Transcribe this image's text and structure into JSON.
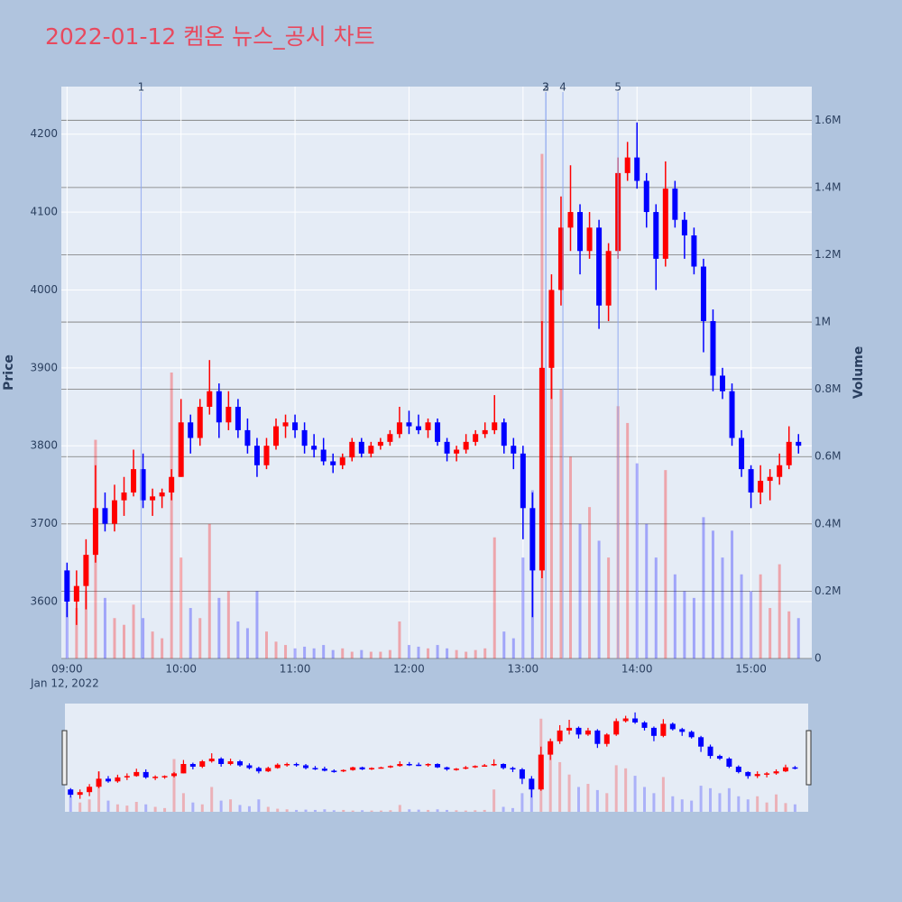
{
  "chart_data": {
    "type": "candlestick",
    "title": "2022-01-12 켐온 뉴스_공시 차트",
    "y_label": "Price",
    "y2_label": "Volume",
    "x_date_label": "Jan 12, 2022",
    "increasing_color": "#ff0000",
    "decreasing_color": "#0000ff",
    "x": [
      "09:00",
      "09:05",
      "09:10",
      "09:15",
      "09:20",
      "09:25",
      "09:30",
      "09:35",
      "09:40",
      "09:45",
      "09:50",
      "09:55",
      "10:00",
      "10:05",
      "10:10",
      "10:15",
      "10:20",
      "10:25",
      "10:30",
      "10:35",
      "10:40",
      "10:45",
      "10:50",
      "10:55",
      "11:00",
      "11:05",
      "11:10",
      "11:15",
      "11:20",
      "11:25",
      "11:30",
      "11:35",
      "11:40",
      "11:45",
      "11:50",
      "11:55",
      "12:00",
      "12:05",
      "12:10",
      "12:15",
      "12:20",
      "12:25",
      "12:30",
      "12:35",
      "12:40",
      "12:45",
      "12:50",
      "12:55",
      "13:00",
      "13:05",
      "13:10",
      "13:15",
      "13:20",
      "13:25",
      "13:30",
      "13:35",
      "13:40",
      "13:45",
      "13:50",
      "13:55",
      "14:00",
      "14:05",
      "14:10",
      "14:15",
      "14:20",
      "14:25",
      "14:30",
      "14:35",
      "14:40",
      "14:45",
      "14:50",
      "14:55",
      "15:00",
      "15:05",
      "15:10",
      "15:15",
      "15:20",
      "15:25"
    ],
    "open": [
      3640,
      3600,
      3620,
      3660,
      3720,
      3700,
      3730,
      3740,
      3770,
      3730,
      3735,
      3740,
      3760,
      3830,
      3810,
      3850,
      3870,
      3830,
      3850,
      3820,
      3800,
      3775,
      3800,
      3825,
      3830,
      3820,
      3800,
      3795,
      3780,
      3775,
      3785,
      3805,
      3790,
      3800,
      3805,
      3815,
      3830,
      3825,
      3820,
      3830,
      3805,
      3790,
      3795,
      3805,
      3815,
      3820,
      3830,
      3800,
      3790,
      3720,
      3640,
      3900,
      4000,
      4080,
      4100,
      4050,
      4080,
      3980,
      4050,
      4150,
      4170,
      4140,
      4100,
      4040,
      4130,
      4090,
      4070,
      4030,
      3960,
      3890,
      3870,
      3810,
      3770,
      3740,
      3755,
      3760,
      3775,
      3805
    ],
    "high": [
      3650,
      3640,
      3680,
      3775,
      3740,
      3750,
      3760,
      3795,
      3790,
      3745,
      3745,
      3770,
      3860,
      3840,
      3860,
      3910,
      3880,
      3870,
      3860,
      3835,
      3810,
      3810,
      3835,
      3840,
      3840,
      3830,
      3815,
      3810,
      3790,
      3790,
      3810,
      3810,
      3805,
      3810,
      3820,
      3850,
      3845,
      3840,
      3835,
      3835,
      3810,
      3800,
      3815,
      3820,
      3830,
      3865,
      3835,
      3810,
      3800,
      3740,
      3960,
      4020,
      4120,
      4160,
      4110,
      4100,
      4090,
      4060,
      4170,
      4190,
      4215,
      4150,
      4110,
      4165,
      4140,
      4100,
      4080,
      4040,
      3975,
      3900,
      3880,
      3820,
      3775,
      3775,
      3770,
      3790,
      3825,
      3815
    ],
    "low": [
      3580,
      3570,
      3590,
      3650,
      3690,
      3690,
      3710,
      3735,
      3720,
      3710,
      3720,
      3730,
      3760,
      3790,
      3800,
      3840,
      3810,
      3820,
      3810,
      3790,
      3760,
      3770,
      3795,
      3810,
      3810,
      3790,
      3785,
      3775,
      3765,
      3770,
      3780,
      3785,
      3785,
      3795,
      3800,
      3810,
      3815,
      3815,
      3810,
      3800,
      3780,
      3780,
      3790,
      3800,
      3810,
      3815,
      3790,
      3770,
      3680,
      3580,
      3630,
      3860,
      3980,
      4050,
      4020,
      4040,
      3950,
      3960,
      4040,
      4140,
      4130,
      4080,
      4000,
      4030,
      4080,
      4040,
      4020,
      3920,
      3870,
      3860,
      3800,
      3760,
      3720,
      3725,
      3730,
      3750,
      3770,
      3790
    ],
    "close": [
      3600,
      3620,
      3660,
      3720,
      3700,
      3730,
      3740,
      3770,
      3730,
      3735,
      3740,
      3760,
      3830,
      3810,
      3850,
      3870,
      3830,
      3850,
      3820,
      3800,
      3775,
      3800,
      3825,
      3830,
      3820,
      3800,
      3795,
      3780,
      3775,
      3785,
      3805,
      3790,
      3800,
      3805,
      3815,
      3830,
      3825,
      3820,
      3830,
      3805,
      3790,
      3795,
      3805,
      3815,
      3820,
      3830,
      3800,
      3790,
      3720,
      3640,
      3900,
      4000,
      4080,
      4100,
      4050,
      4080,
      3980,
      4050,
      4150,
      4170,
      4140,
      4100,
      4040,
      4130,
      4090,
      4070,
      4030,
      3960,
      3890,
      3870,
      3810,
      3770,
      3740,
      3755,
      3760,
      3775,
      3805,
      3800
    ],
    "volume": [
      250000,
      150000,
      200000,
      650000,
      180000,
      120000,
      100000,
      160000,
      120000,
      80000,
      60000,
      850000,
      300000,
      150000,
      120000,
      400000,
      180000,
      200000,
      110000,
      90000,
      200000,
      80000,
      50000,
      40000,
      30000,
      35000,
      30000,
      40000,
      25000,
      30000,
      20000,
      25000,
      20000,
      20000,
      25000,
      110000,
      40000,
      35000,
      30000,
      40000,
      30000,
      25000,
      20000,
      25000,
      30000,
      360000,
      80000,
      60000,
      300000,
      500000,
      1500000,
      1000000,
      800000,
      600000,
      400000,
      450000,
      350000,
      300000,
      750000,
      700000,
      580000,
      400000,
      300000,
      560000,
      250000,
      200000,
      180000,
      420000,
      380000,
      300000,
      380000,
      250000,
      200000,
      250000,
      150000,
      280000,
      140000,
      120000
    ],
    "xlim": [
      "08:57",
      "15:32"
    ],
    "xticks": [
      "09:00",
      "10:00",
      "11:00",
      "12:00",
      "13:00",
      "14:00",
      "15:00"
    ],
    "ylim": [
      3527,
      4261
    ],
    "yticks": [
      3600,
      3700,
      3800,
      3900,
      4000,
      4100,
      4200
    ],
    "y2lim": [
      0,
      1700000
    ],
    "y2ticks": [
      {
        "value": 0,
        "label": "0"
      },
      {
        "value": 200000,
        "label": "0.2M"
      },
      {
        "value": 400000,
        "label": "0.4M"
      },
      {
        "value": 600000,
        "label": "0.6M"
      },
      {
        "value": 800000,
        "label": "0.8M"
      },
      {
        "value": 1000000,
        "label": "1M"
      },
      {
        "value": 1200000,
        "label": "1.2M"
      },
      {
        "value": 1400000,
        "label": "1.4M"
      },
      {
        "value": 1600000,
        "label": "1.6M"
      }
    ],
    "annotations": [
      {
        "x": "09:39",
        "label": "1"
      },
      {
        "x": "13:12",
        "label": "3"
      },
      {
        "x": "13:12",
        "label": "2"
      },
      {
        "x": "13:21",
        "label": "4"
      },
      {
        "x": "13:50",
        "label": "5"
      }
    ],
    "grid": true
  }
}
